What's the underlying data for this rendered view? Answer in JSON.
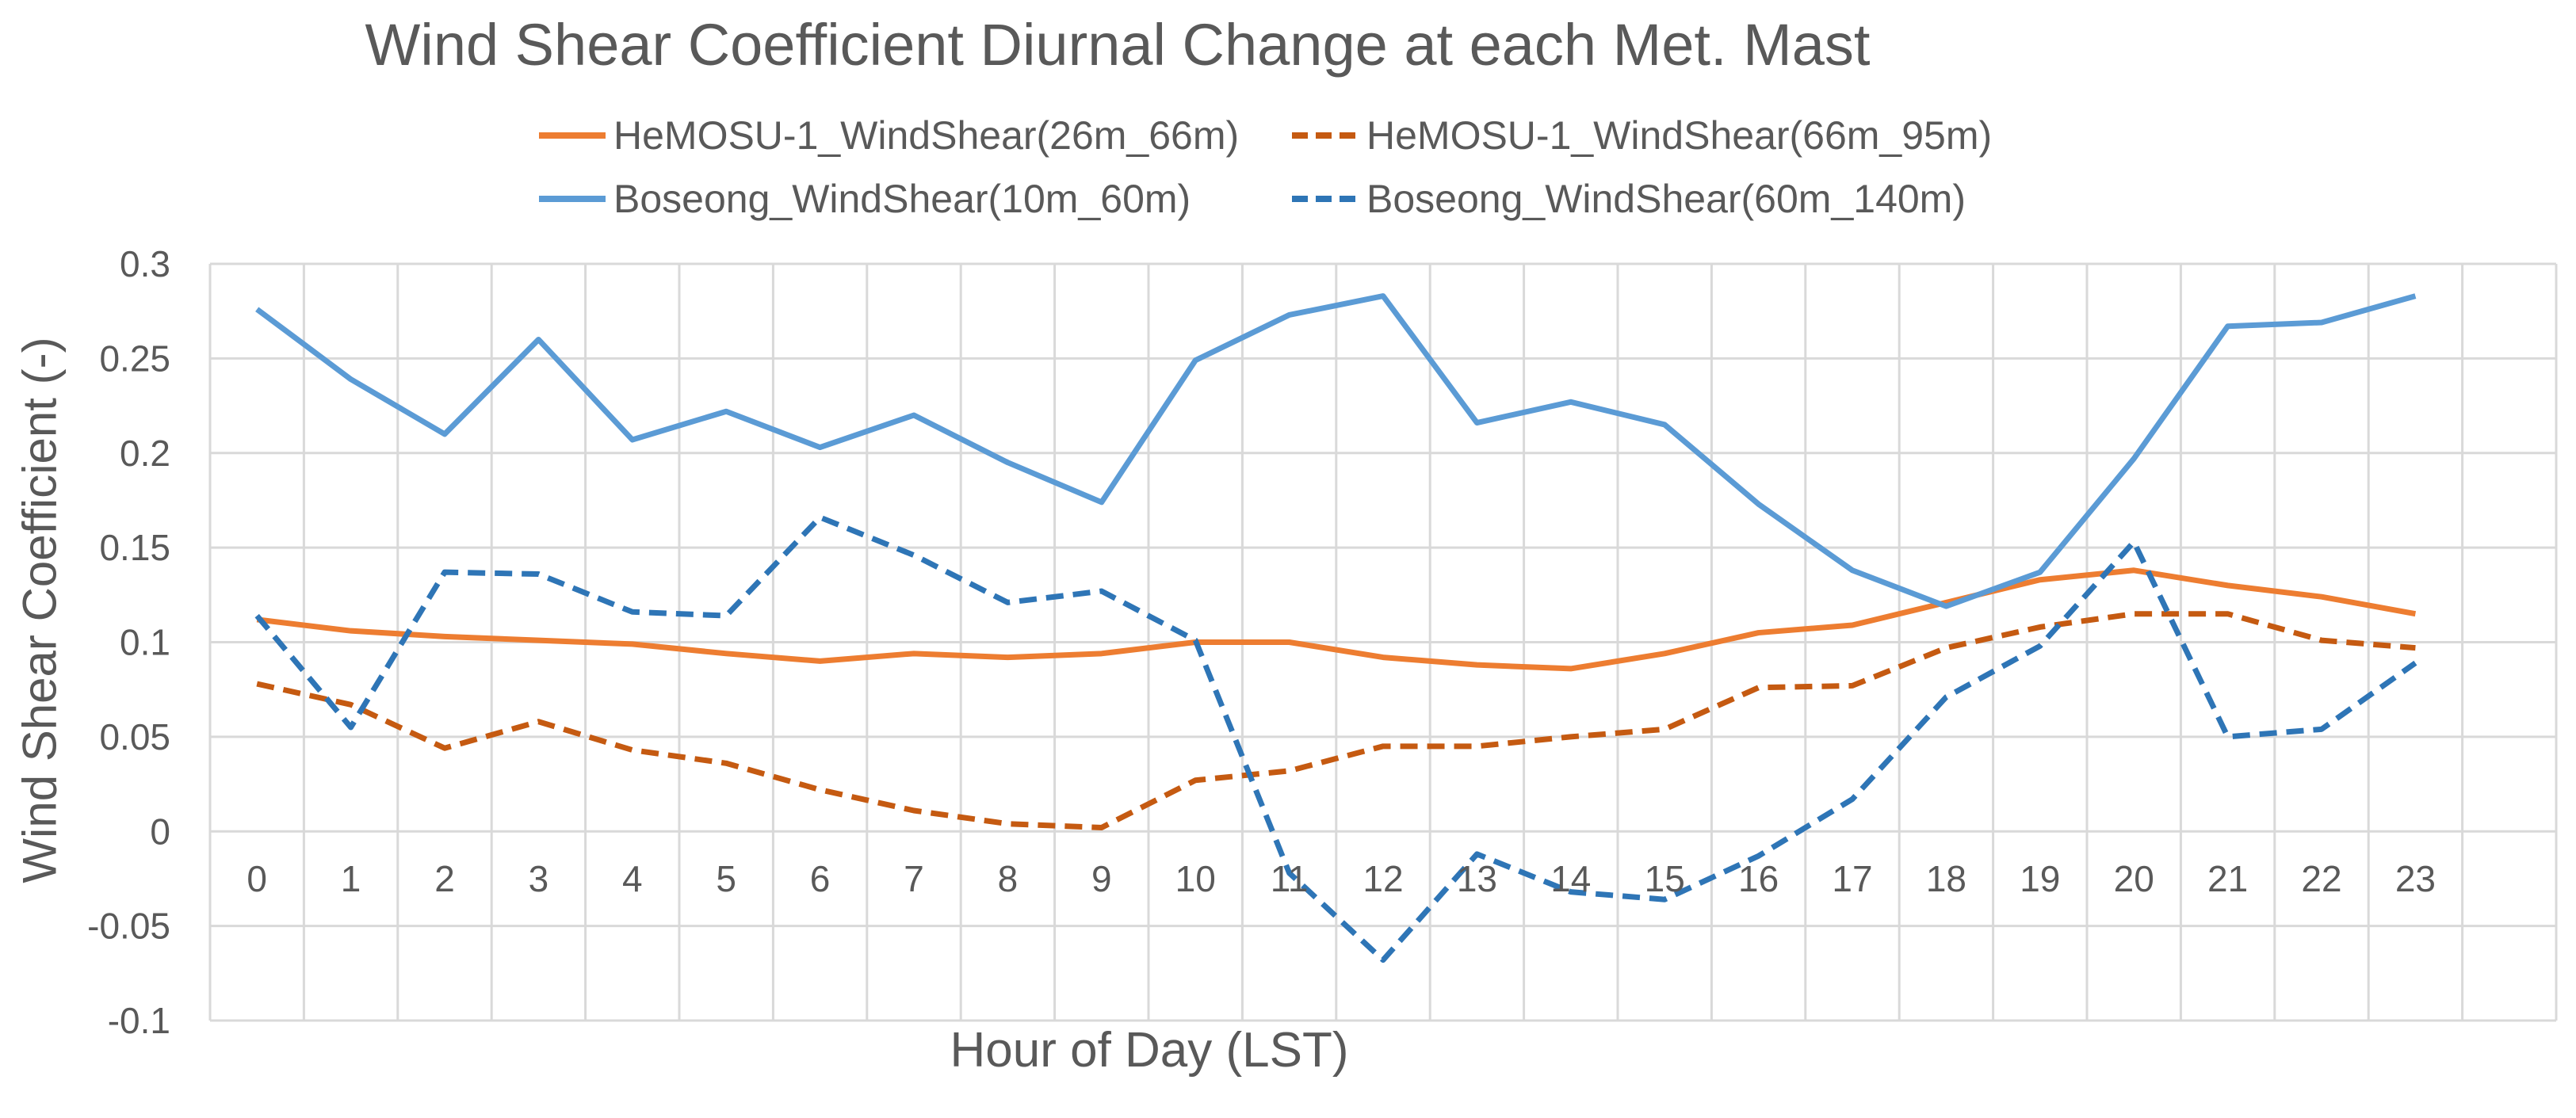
{
  "chart_data": {
    "type": "line",
    "title": "Wind Shear Coefficient Diurnal Change at each Met. Mast",
    "xlabel": "Hour of Day (LST)",
    "ylabel": "Wind Shear Coefficient (-)",
    "ylim": [
      -0.1,
      0.3
    ],
    "yticks": [
      "-0.1",
      "-0.05",
      "0",
      "0.05",
      "0.1",
      "0.15",
      "0.2",
      "0.25",
      "0.3"
    ],
    "categories": [
      "0",
      "1",
      "2",
      "3",
      "4",
      "5",
      "6",
      "7",
      "8",
      "9",
      "10",
      "11",
      "12",
      "13",
      "14",
      "15",
      "16",
      "17",
      "18",
      "19",
      "20",
      "21",
      "22",
      "23"
    ],
    "grid": true,
    "legend_position": "top",
    "series": [
      {
        "name": "HeMOSU-1_WindShear(26m_66m)",
        "color": "#ED7D31",
        "dash": "solid",
        "values": [
          0.112,
          0.106,
          0.103,
          0.101,
          0.099,
          0.094,
          0.09,
          0.094,
          0.092,
          0.094,
          0.1,
          0.1,
          0.092,
          0.088,
          0.086,
          0.094,
          0.105,
          0.109,
          0.121,
          0.133,
          0.138,
          0.13,
          0.124,
          0.115
        ]
      },
      {
        "name": "HeMOSU-1_WindShear(66m_95m)",
        "color": "#C55A11",
        "dash": "dashed",
        "values": [
          0.078,
          0.067,
          0.044,
          0.058,
          0.043,
          0.036,
          0.022,
          0.011,
          0.004,
          0.002,
          0.027,
          0.032,
          0.045,
          0.045,
          0.05,
          0.054,
          0.076,
          0.077,
          0.097,
          0.108,
          0.115,
          0.115,
          0.101,
          0.097
        ]
      },
      {
        "name": "Boseong_WindShear(10m_60m)",
        "color": "#5B9BD5",
        "dash": "solid",
        "values": [
          0.276,
          0.239,
          0.21,
          0.26,
          0.207,
          0.222,
          0.203,
          0.22,
          0.195,
          0.174,
          0.249,
          0.273,
          0.283,
          0.216,
          0.227,
          0.215,
          0.173,
          0.138,
          0.119,
          0.137,
          0.197,
          0.267,
          0.269,
          0.283
        ]
      },
      {
        "name": "Boseong_WindShear(60m_140m)",
        "color": "#2E75B6",
        "dash": "dashed",
        "values": [
          0.114,
          0.055,
          0.137,
          0.136,
          0.116,
          0.114,
          0.166,
          0.146,
          0.121,
          0.127,
          0.101,
          -0.022,
          -0.068,
          -0.012,
          -0.032,
          -0.036,
          -0.013,
          0.017,
          0.071,
          0.098,
          0.153,
          0.05,
          0.054,
          0.089
        ]
      }
    ]
  }
}
